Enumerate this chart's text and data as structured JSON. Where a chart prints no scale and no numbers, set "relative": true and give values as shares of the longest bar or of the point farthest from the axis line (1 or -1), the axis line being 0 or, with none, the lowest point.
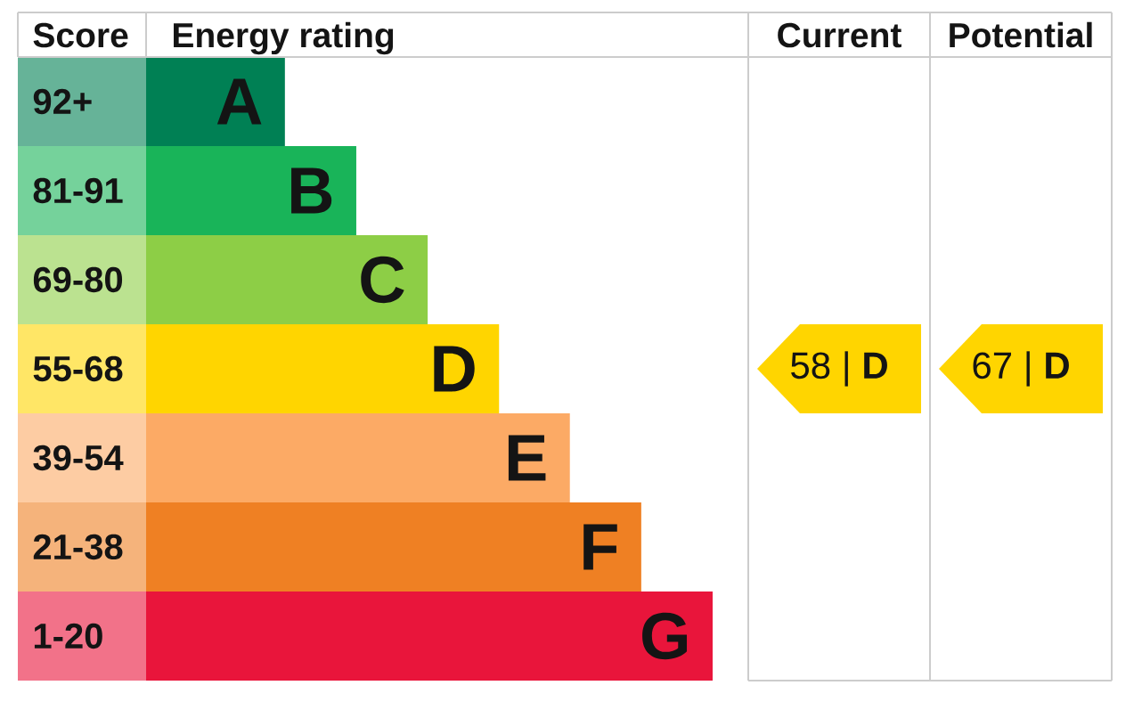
{
  "chart_data": [
    {
      "type": "bar",
      "orientation": "horizontal",
      "relative": true,
      "title": "Energy rating",
      "ylabel": "Score",
      "categories": [
        "92+",
        "81-91",
        "69-80",
        "55-68",
        "39-54",
        "21-38",
        "1-20"
      ],
      "values": [
        0.245,
        0.371,
        0.497,
        0.623,
        0.748,
        0.874,
        1
      ],
      "colors": [
        "#008054",
        "#19b459",
        "#8dce46",
        "#ffd500",
        "#fcaa65",
        "#ef8023",
        "#e9153b"
      ],
      "annotations": [
        {
          "text": "A",
          "x": 0.245,
          "y": "92+"
        },
        {
          "text": "B",
          "x": 0.371,
          "y": "81-91"
        },
        {
          "text": "C",
          "x": 0.497,
          "y": "69-80"
        },
        {
          "text": "D",
          "x": 0.623,
          "y": "55-68"
        },
        {
          "text": "E",
          "x": 0.748,
          "y": "39-54"
        },
        {
          "text": "F",
          "x": 0.874,
          "y": "21-38"
        },
        {
          "text": "G",
          "x": 1,
          "y": "1-20"
        }
      ]
    },
    {
      "type": "other",
      "categories": [
        "Current",
        "Potential"
      ],
      "colors": [
        "#ffd500",
        "#ffd500"
      ],
      "annotations": [
        "58 | **D**",
        "67 | **D**"
      ]
    }
  ]
}
